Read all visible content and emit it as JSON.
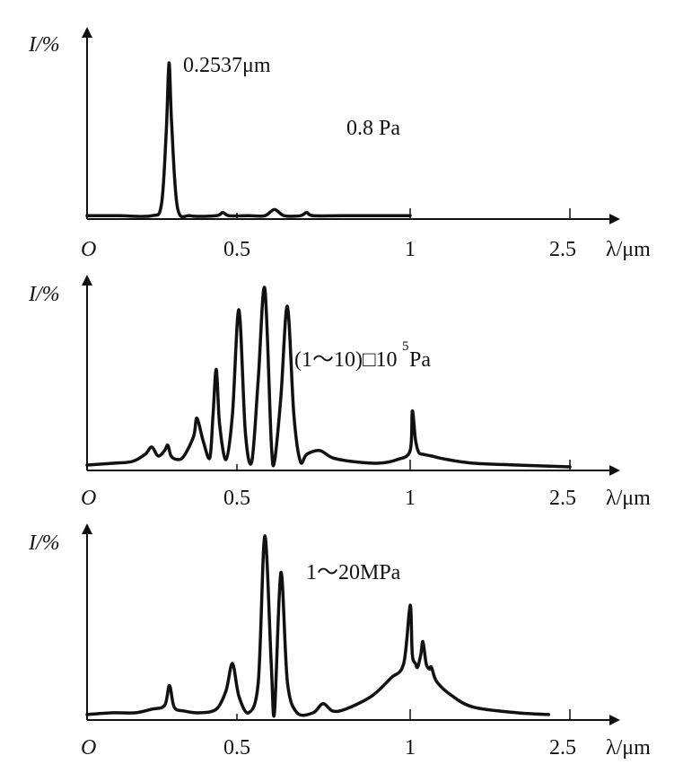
{
  "chart_data": [
    {
      "type": "line",
      "ylabel": "I/%",
      "xlabel": "λ/μm",
      "origin_label": "O",
      "x_ticks": [
        "0.5",
        "1",
        "2.5"
      ],
      "x_tick_values": [
        0.5,
        1,
        2.5
      ],
      "x_range": [
        0,
        2.5
      ],
      "x_axis_break": "between 1 and 2.5 (non-linear scale)",
      "y_ticks": [],
      "annotations": [
        "0.2537μm",
        "0.8 Pa"
      ],
      "series": [
        {
          "x": [
            0,
            0.1,
            0.2,
            0.23,
            0.245,
            0.2537,
            0.262,
            0.28,
            0.32,
            0.4,
            0.42,
            0.44,
            0.5,
            0.55,
            0.58,
            0.61,
            0.66,
            0.68,
            0.7,
            0.8,
            1.0
          ],
          "y": [
            1,
            1,
            1,
            8,
            55,
            100,
            60,
            6,
            1,
            1,
            3,
            1,
            1,
            1,
            5,
            1,
            1,
            3,
            1,
            1,
            1
          ]
        }
      ]
    },
    {
      "type": "line",
      "ylabel": "I/%",
      "xlabel": "λ/μm",
      "origin_label": "O",
      "x_ticks": [
        "0.5",
        "1",
        "2.5"
      ],
      "x_tick_values": [
        0.5,
        1,
        2.5
      ],
      "x_range": [
        0,
        2.5
      ],
      "x_axis_break": "between 1 and 2.5 (non-linear scale)",
      "y_ticks": [],
      "annotations": [
        "(1～10)□10",
        "5",
        "Pa"
      ],
      "series": [
        {
          "x": [
            0,
            0.08,
            0.14,
            0.18,
            0.2,
            0.22,
            0.24,
            0.25,
            0.26,
            0.28,
            0.3,
            0.33,
            0.34,
            0.36,
            0.38,
            0.39,
            0.4,
            0.41,
            0.43,
            0.45,
            0.47,
            0.49,
            0.51,
            0.53,
            0.55,
            0.57,
            0.58,
            0.6,
            0.62,
            0.64,
            0.66,
            0.68,
            0.72,
            0.76,
            0.82,
            0.9,
            0.96,
            1.0,
            1.02,
            1.05,
            1.08,
            1.12,
            1.2,
            1.35,
            1.6,
            2.0,
            2.5
          ],
          "y": [
            2,
            3,
            4,
            8,
            12,
            7,
            10,
            13,
            7,
            5,
            7,
            18,
            28,
            15,
            6,
            30,
            55,
            25,
            5,
            30,
            88,
            20,
            4,
            50,
            100,
            15,
            4,
            40,
            90,
            30,
            4,
            8,
            10,
            6,
            4,
            3,
            5,
            10,
            32,
            16,
            9,
            8,
            7,
            5,
            3,
            2,
            1
          ]
        }
      ]
    },
    {
      "type": "line",
      "ylabel": "I/%",
      "xlabel": "λ/μm",
      "origin_label": "O",
      "x_ticks": [
        "0.5",
        "1",
        "2.5"
      ],
      "x_tick_values": [
        0.5,
        1,
        2.5
      ],
      "x_range": [
        0,
        2.5
      ],
      "x_axis_break": "between 1 and 2.5 (non-linear scale)",
      "y_ticks": [],
      "annotations": [
        "1～20MPa"
      ],
      "series": [
        {
          "x": [
            0,
            0.08,
            0.15,
            0.2,
            0.24,
            0.255,
            0.27,
            0.3,
            0.35,
            0.4,
            0.43,
            0.45,
            0.47,
            0.5,
            0.53,
            0.55,
            0.57,
            0.58,
            0.6,
            0.62,
            0.65,
            0.7,
            0.73,
            0.76,
            0.8,
            0.88,
            0.94,
            0.98,
            1.0,
            1.02,
            1.05,
            1.07,
            1.1,
            1.12,
            1.15,
            1.18,
            1.2,
            1.25,
            1.4,
            1.6,
            2.0,
            2.3
          ],
          "y": [
            2,
            3,
            3,
            5,
            7,
            18,
            6,
            4,
            3,
            5,
            15,
            30,
            12,
            3,
            20,
            100,
            30,
            3,
            80,
            20,
            3,
            3,
            8,
            4,
            5,
            12,
            22,
            30,
            62,
            35,
            30,
            28,
            35,
            42,
            30,
            27,
            28,
            20,
            12,
            6,
            3,
            2
          ]
        }
      ]
    }
  ]
}
